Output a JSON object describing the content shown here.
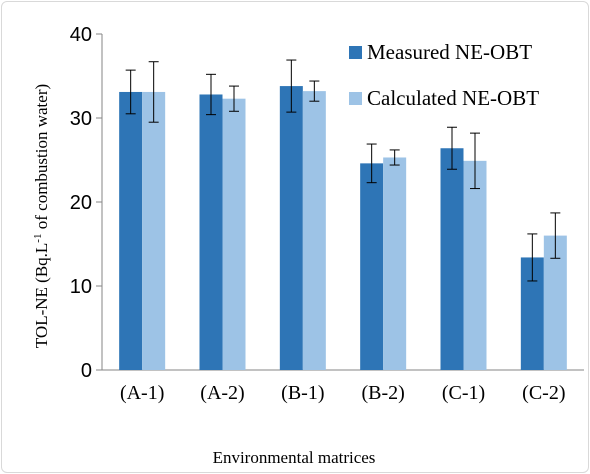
{
  "chart_data": {
    "type": "bar",
    "categories": [
      "(A-1)",
      "(A-2)",
      "(B-1)",
      "(B-2)",
      "(C-1)",
      "(C-2)"
    ],
    "series": [
      {
        "name": "Measured NE-OBT",
        "color": "#2e75b6",
        "values": [
          33.1,
          32.8,
          33.8,
          24.6,
          26.4,
          13.4
        ],
        "error": [
          2.6,
          2.4,
          3.1,
          2.3,
          2.5,
          2.8
        ]
      },
      {
        "name": "Calculated NE-OBT",
        "color": "#9dc3e6",
        "values": [
          33.1,
          32.3,
          33.2,
          25.3,
          24.9,
          16.0
        ],
        "error": [
          3.6,
          1.5,
          1.2,
          0.9,
          3.3,
          2.7
        ]
      }
    ],
    "xlabel": "Environmental matrices",
    "ylabel": "TOL-NE (Bq.L",
    "ylabel_sup": "-1",
    "ylabel_suffix": " of combustion water)",
    "ylim": [
      0,
      40
    ],
    "yticks": [
      0,
      10,
      20,
      30,
      40
    ],
    "grid": false,
    "legend": "top-right"
  }
}
